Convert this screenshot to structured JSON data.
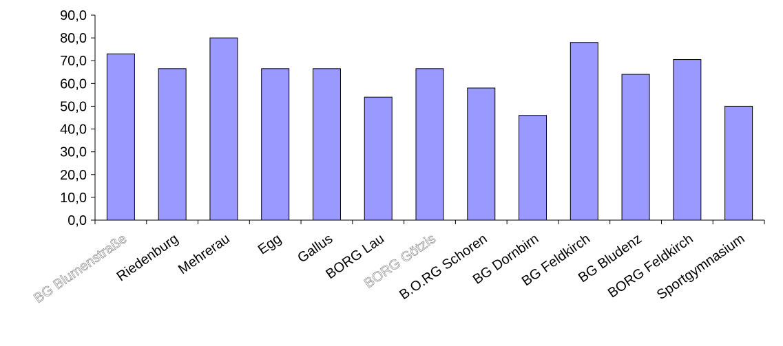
{
  "chart_data": {
    "type": "bar",
    "categories": [
      "BG Blumenstraße",
      "Riedenburg",
      "Mehrerau",
      "Egg",
      "Gallus",
      "BORG Lau",
      "BORG Götzis",
      "B.O.RG Schoren",
      "BG Dornbirn",
      "BG Feldkirch",
      "BG Bludenz",
      "BORG Feldkirch",
      "Sportgymnasium"
    ],
    "values": [
      73.0,
      66.5,
      80.0,
      66.5,
      66.5,
      54.0,
      66.5,
      58.0,
      46.0,
      78.0,
      64.0,
      70.5,
      50.0
    ],
    "ylim": [
      0,
      90
    ],
    "yticks": [
      "0,0",
      "10,0",
      "20,0",
      "30,0",
      "40,0",
      "50,0",
      "60,0",
      "70,0",
      "80,0",
      "90,0"
    ],
    "grid": false,
    "legend": "none",
    "title": "",
    "xlabel": "",
    "ylabel": "",
    "colors": {
      "bar_fill": "#9999ff",
      "bar_stroke": "#000000",
      "axis": "#000000"
    },
    "faded_label_indices": [
      0,
      6
    ]
  }
}
